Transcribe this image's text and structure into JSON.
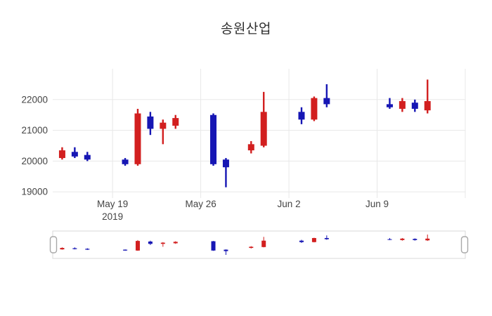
{
  "chart_data": {
    "type": "candlestick",
    "title": "송원산업",
    "xlabel": "",
    "ylabel": "",
    "yticks": [
      19000,
      20000,
      21000,
      22000
    ],
    "ylim": [
      18800,
      23000
    ],
    "grid": true,
    "legend": false,
    "rangeslider": true,
    "colors": {
      "increasing": "#d21f1f",
      "decreasing": "#1616b4",
      "grid": "#e8e8e8",
      "axis_text": "#444444",
      "slider_border": "#d9d9d9",
      "handle_fill": "#ffffff",
      "handle_border": "#a8a8a8"
    },
    "x_ticks": [
      {
        "date": "2019-05-19",
        "label": "May 19",
        "sublabel": "2019"
      },
      {
        "date": "2019-05-26",
        "label": "May 26",
        "sublabel": ""
      },
      {
        "date": "2019-06-02",
        "label": "Jun 2",
        "sublabel": ""
      },
      {
        "date": "2019-06-09",
        "label": "Jun 9",
        "sublabel": ""
      }
    ],
    "extra_gridline_dates": [
      "2019-06-16"
    ],
    "candles": [
      {
        "date": "2019-05-15",
        "open": 20100,
        "high": 20450,
        "low": 20050,
        "close": 20350
      },
      {
        "date": "2019-05-16",
        "open": 20300,
        "high": 20450,
        "low": 20100,
        "close": 20150
      },
      {
        "date": "2019-05-17",
        "open": 20200,
        "high": 20300,
        "low": 20000,
        "close": 20050
      },
      {
        "date": "2019-05-20",
        "open": 20050,
        "high": 20100,
        "low": 19850,
        "close": 19900
      },
      {
        "date": "2019-05-21",
        "open": 19900,
        "high": 21700,
        "low": 19850,
        "close": 21550
      },
      {
        "date": "2019-05-22",
        "open": 21450,
        "high": 21600,
        "low": 20850,
        "close": 21050
      },
      {
        "date": "2019-05-23",
        "open": 21050,
        "high": 21350,
        "low": 20550,
        "close": 21250
      },
      {
        "date": "2019-05-24",
        "open": 21150,
        "high": 21500,
        "low": 21050,
        "close": 21400
      },
      {
        "date": "2019-05-27",
        "open": 21500,
        "high": 21550,
        "low": 19850,
        "close": 19900
      },
      {
        "date": "2019-05-28",
        "open": 20050,
        "high": 20100,
        "low": 19150,
        "close": 19800
      },
      {
        "date": "2019-05-30",
        "open": 20350,
        "high": 20650,
        "low": 20250,
        "close": 20550
      },
      {
        "date": "2019-05-31",
        "open": 20500,
        "high": 22250,
        "low": 20450,
        "close": 21600
      },
      {
        "date": "2019-06-03",
        "open": 21600,
        "high": 21750,
        "low": 21200,
        "close": 21350
      },
      {
        "date": "2019-06-04",
        "open": 21350,
        "high": 22100,
        "low": 21300,
        "close": 22050
      },
      {
        "date": "2019-06-05",
        "open": 22050,
        "high": 22500,
        "low": 21750,
        "close": 21850
      },
      {
        "date": "2019-06-10",
        "open": 21850,
        "high": 22050,
        "low": 21700,
        "close": 21750
      },
      {
        "date": "2019-06-11",
        "open": 21700,
        "high": 22050,
        "low": 21600,
        "close": 21950
      },
      {
        "date": "2019-06-12",
        "open": 21900,
        "high": 22000,
        "low": 21600,
        "close": 21700
      },
      {
        "date": "2019-06-13",
        "open": 21650,
        "high": 22650,
        "low": 21550,
        "close": 21950
      }
    ]
  }
}
